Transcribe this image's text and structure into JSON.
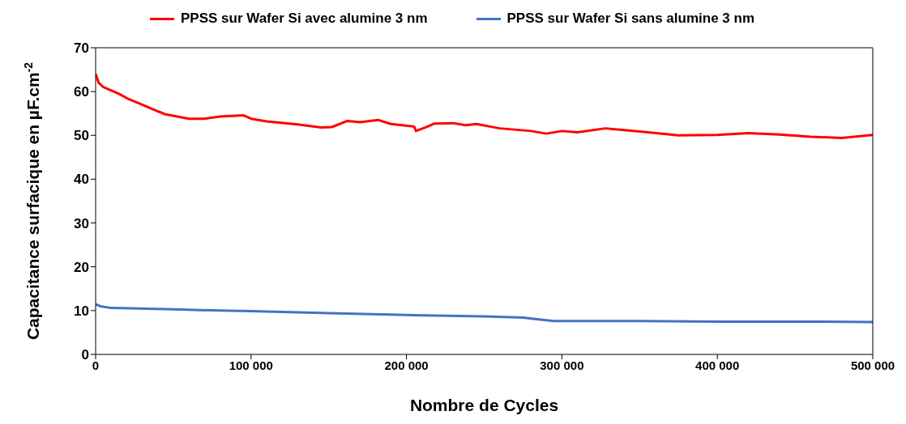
{
  "chart_data": {
    "type": "line",
    "xlabel": "Nombre de Cycles",
    "ylabel": "Capacitance surfacique en µF.cm$^{-2}$",
    "xlim": [
      0,
      500000
    ],
    "xticks": [
      0,
      {
        "value": 100000,
        "label": "100 000"
      },
      {
        "value": 200000,
        "label": "200 000"
      },
      {
        "value": 300000,
        "label": "300 000"
      },
      {
        "value": 400000,
        "label": "400 000"
      },
      {
        "value": 500000,
        "label": "500 000"
      }
    ],
    "ylim": [
      0,
      70
    ],
    "yticks": [
      0,
      10,
      20,
      30,
      40,
      50,
      60,
      70
    ],
    "legend": "top",
    "marker": "none",
    "line_style": "solid",
    "series": [
      {
        "name": "PPSS sur Wafer Si avec alumine 3 nm",
        "color": "#ff0000",
        "x": [
          0,
          2000,
          5000,
          15000,
          20000,
          30000,
          40000,
          45000,
          60000,
          70000,
          80000,
          95000,
          100000,
          110000,
          130000,
          145000,
          152000,
          162000,
          170000,
          182000,
          190000,
          205000,
          206000,
          212000,
          218000,
          230000,
          238000,
          245000,
          260000,
          280000,
          290000,
          300000,
          310000,
          328000,
          350000,
          375000,
          400000,
          420000,
          440000,
          460000,
          480000,
          500000
        ],
        "values": [
          64,
          62,
          61,
          59.5,
          58.5,
          57,
          55.5,
          54.8,
          53.8,
          53.8,
          54.3,
          54.6,
          53.8,
          53.2,
          52.5,
          51.8,
          51.9,
          53.3,
          53,
          53.5,
          52.6,
          52,
          51,
          51.8,
          52.7,
          52.8,
          52.3,
          52.6,
          51.6,
          51,
          50.4,
          51,
          50.7,
          51.6,
          50.9,
          50,
          50.1,
          50.5,
          50.2,
          49.7,
          49.4,
          50.1
        ]
      },
      {
        "name": "PPSS sur Wafer Si sans alumine 3 nm",
        "color": "#4472c4",
        "x": [
          0,
          3000,
          10000,
          50000,
          80000,
          100000,
          150000,
          200000,
          250000,
          275000,
          285000,
          295000,
          350000,
          400000,
          450000,
          500000
        ],
        "values": [
          11.5,
          11,
          10.6,
          10.3,
          10,
          9.9,
          9.4,
          9,
          8.7,
          8.4,
          8,
          7.6,
          7.6,
          7.5,
          7.5,
          7.4
        ]
      }
    ]
  }
}
